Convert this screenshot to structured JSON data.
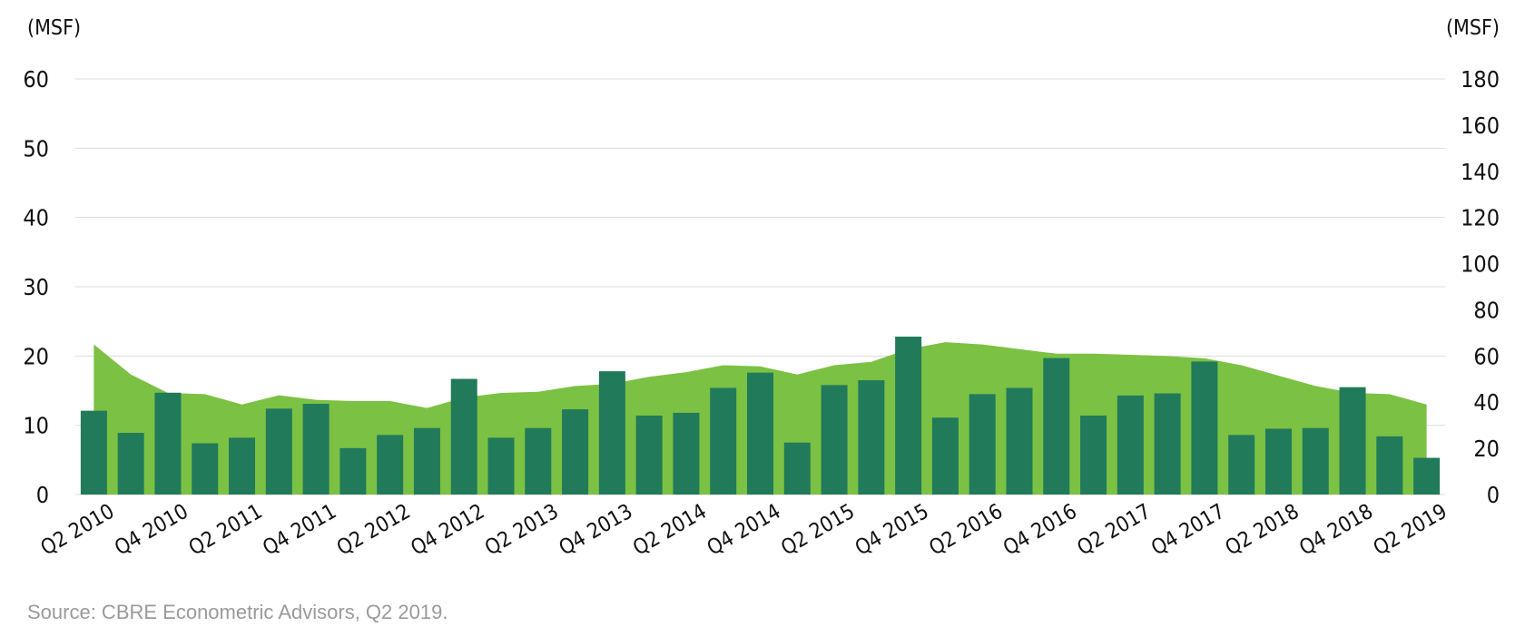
{
  "chart_data": {
    "type": "bar",
    "left_axis_label": "(MSF)",
    "right_axis_label": "(MSF)",
    "left_ylim": [
      0,
      60
    ],
    "right_ylim": [
      0,
      180
    ],
    "left_ticks": [
      "0",
      "10",
      "20",
      "30",
      "40",
      "50",
      "60"
    ],
    "right_ticks": [
      "0",
      "20",
      "40",
      "60",
      "80",
      "100",
      "120",
      "140",
      "160",
      "180"
    ],
    "grid": true,
    "categories": [
      "Q2 2010",
      "Q3 2010",
      "Q4 2010",
      "Q1 2011",
      "Q2 2011",
      "Q3 2011",
      "Q4 2011",
      "Q1 2012",
      "Q2 2012",
      "Q3 2012",
      "Q4 2012",
      "Q1 2013",
      "Q2 2013",
      "Q3 2013",
      "Q4 2013",
      "Q1 2014",
      "Q2 2014",
      "Q3 2014",
      "Q4 2014",
      "Q1 2015",
      "Q2 2015",
      "Q3 2015",
      "Q4 2015",
      "Q1 2016",
      "Q2 2016",
      "Q3 2016",
      "Q4 2016",
      "Q1 2017",
      "Q2 2017",
      "Q3 2017",
      "Q4 2017",
      "Q1 2018",
      "Q2 2018",
      "Q3 2018",
      "Q4 2018",
      "Q1 2019",
      "Q2 2019"
    ],
    "x_tick_labels": [
      "Q2 2010",
      "Q4 2010",
      "Q2 2011",
      "Q4 2011",
      "Q2 2012",
      "Q4 2012",
      "Q2 2013",
      "Q4 2013",
      "Q2 2014",
      "Q4 2014",
      "Q2 2015",
      "Q4 2015",
      "Q2 2016",
      "Q4 2016",
      "Q2 2017",
      "Q4 2017",
      "Q2 2018",
      "Q4 2018",
      "Q2 2019"
    ],
    "series": [
      {
        "type": "bar",
        "axis": "left",
        "color": "#217a5a",
        "values": [
          12.1,
          8.9,
          14.7,
          7.4,
          8.2,
          12.4,
          13.1,
          6.7,
          8.6,
          9.6,
          16.7,
          8.2,
          9.6,
          12.3,
          17.8,
          11.4,
          11.8,
          15.4,
          17.6,
          7.5,
          15.8,
          16.5,
          22.8,
          11.1,
          14.5,
          15.4,
          19.7,
          11.4,
          14.3,
          14.6,
          19.2,
          8.6,
          9.5,
          9.6,
          15.5,
          8.4,
          5.3
        ]
      },
      {
        "type": "area",
        "axis": "right",
        "color": "#7bc143",
        "values": [
          65,
          52,
          44,
          43.5,
          39,
          43,
          41,
          40.5,
          40.5,
          37.5,
          42,
          44,
          44.5,
          47,
          48,
          51,
          53,
          56,
          55.5,
          52,
          56,
          57.5,
          63,
          66,
          65,
          63,
          61,
          61,
          60.5,
          60,
          59,
          56,
          51.5,
          47,
          44,
          43.5,
          39
        ]
      }
    ],
    "source": "Source: CBRE Econometric Advisors, Q2 2019."
  }
}
